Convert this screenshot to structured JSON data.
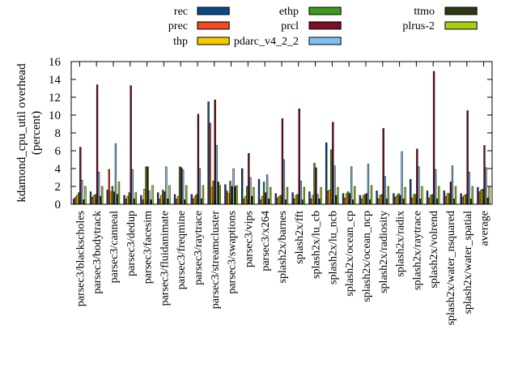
{
  "chart_data": {
    "type": "bar",
    "title": "",
    "xlabel": "",
    "ylabel_line1": "kdamond_cpu_util overhead",
    "ylabel_line2": "(percent)",
    "ylim": [
      0,
      16
    ],
    "yticks": [
      "0",
      "2",
      "4",
      "6",
      "8",
      "10",
      "12",
      "14",
      "16"
    ],
    "grid": false,
    "legend_position": "top",
    "categories": [
      "parsec3/blackscholes",
      "parsec3/bodytrack",
      "parsec3/canneal",
      "parsec3/dedup",
      "parsec3/facesim",
      "parsec3/fluidanimate",
      "parsec3/freqmine",
      "parsec3/raytrace",
      "parsec3/streamcluster",
      "parsec3/swaptions",
      "parsec3/vips",
      "parsec3/x264",
      "splash2x/barnes",
      "splash2x/fft",
      "splash2x/lu_cb",
      "splash2x/lu_ncb",
      "splash2x/ocean_cp",
      "splash2x/ocean_ncp",
      "splash2x/radiosity",
      "splash2x/radix",
      "splash2x/raytrace",
      "splash2x/volrend",
      "splash2x/water_nsquared",
      "splash2x/water_spatial",
      "average"
    ],
    "series": [
      {
        "name": "rec",
        "color": "#0b4a8a",
        "values": [
          0.6,
          1.4,
          1.6,
          1.0,
          1.0,
          1.3,
          1.1,
          1.1,
          11.5,
          2.2,
          4.0,
          2.8,
          1.2,
          1.3,
          1.4,
          6.9,
          1.2,
          1.0,
          1.5,
          1.2,
          2.8,
          1.5,
          1.5,
          1.2,
          1.9
        ]
      },
      {
        "name": "prec",
        "color": "#f04a1e",
        "values": [
          0.8,
          0.8,
          3.9,
          0.6,
          0.5,
          0.6,
          0.6,
          0.6,
          9.1,
          1.5,
          0.6,
          0.5,
          0.7,
          0.6,
          0.6,
          1.5,
          0.7,
          0.6,
          0.6,
          0.8,
          0.7,
          0.7,
          0.9,
          0.8,
          1.4
        ]
      },
      {
        "name": "thp",
        "color": "#f5c800",
        "values": [
          1.0,
          1.0,
          1.4,
          0.9,
          1.7,
          1.0,
          0.9,
          0.9,
          1.9,
          1.2,
          0.9,
          0.9,
          0.9,
          1.0,
          1.0,
          1.6,
          1.2,
          1.0,
          1.0,
          1.0,
          1.1,
          1.0,
          1.2,
          1.0,
          1.6
        ]
      },
      {
        "name": "ethp",
        "color": "#3c9a1c",
        "values": [
          1.3,
          1.1,
          2.0,
          1.3,
          4.2,
          1.6,
          4.2,
          1.1,
          2.6,
          2.6,
          2.0,
          2.5,
          1.0,
          1.1,
          4.6,
          6.1,
          1.4,
          1.1,
          1.1,
          1.2,
          1.1,
          1.1,
          1.2,
          1.1,
          1.7
        ]
      },
      {
        "name": "prcl",
        "color": "#7d0f24",
        "values": [
          6.4,
          13.4,
          1.4,
          13.3,
          4.2,
          1.4,
          4.1,
          10.1,
          11.7,
          2.0,
          5.7,
          1.3,
          9.6,
          10.7,
          4.1,
          9.2,
          1.2,
          1.2,
          8.5,
          1.0,
          6.2,
          14.9,
          2.5,
          10.5,
          6.6
        ]
      },
      {
        "name": "pdarc_v4_2_2",
        "color": "#7cc0f4",
        "values": [
          2.7,
          3.6,
          6.8,
          3.9,
          1.5,
          4.2,
          3.9,
          4.0,
          6.6,
          4.0,
          3.0,
          3.3,
          5.0,
          2.6,
          1.1,
          4.3,
          4.2,
          4.5,
          3.1,
          5.9,
          4.2,
          3.9,
          4.3,
          3.6,
          4.1
        ]
      },
      {
        "name": "ttmo",
        "color": "#2c3a10",
        "values": [
          0.5,
          0.9,
          1.1,
          0.6,
          0.5,
          0.6,
          0.5,
          0.6,
          2.5,
          2.0,
          0.9,
          0.6,
          0.5,
          0.5,
          0.6,
          1.0,
          0.5,
          0.5,
          0.6,
          0.6,
          0.6,
          0.6,
          0.6,
          0.6,
          0.7
        ]
      },
      {
        "name": "plrus-2",
        "color": "#a6cf14",
        "values": [
          2.0,
          2.0,
          2.5,
          1.3,
          2.1,
          2.1,
          2.1,
          2.1,
          2.1,
          2.1,
          1.9,
          1.9,
          1.9,
          1.9,
          1.9,
          1.9,
          2.0,
          2.1,
          2.0,
          1.9,
          2.0,
          2.0,
          2.0,
          2.0,
          2.0
        ]
      }
    ]
  }
}
